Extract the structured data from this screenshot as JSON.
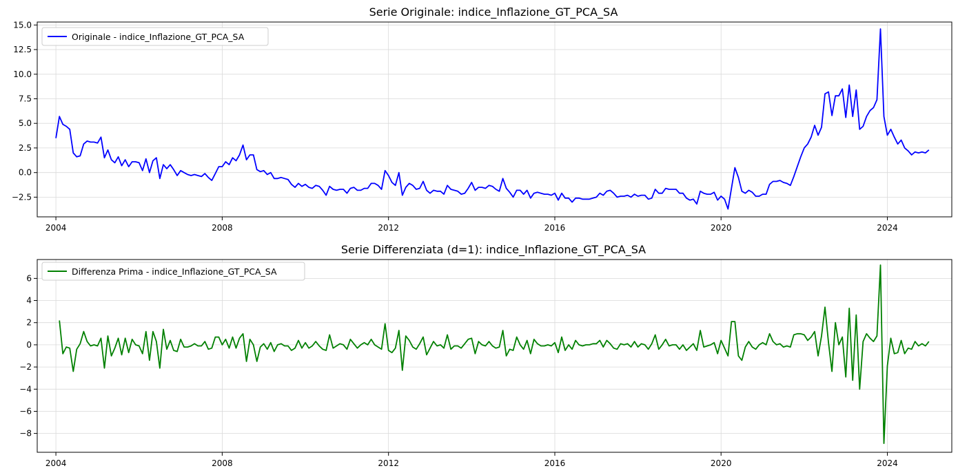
{
  "chart_data": [
    {
      "type": "line",
      "title": "Serie Originale: indice_Inflazione_GT_PCA_SA",
      "xlabel": "",
      "ylabel": "",
      "xlim": [
        2003.55,
        2025.55
      ],
      "ylim": [
        -4.5,
        15.3
      ],
      "x_ticks": [
        2004,
        2008,
        2012,
        2016,
        2020,
        2024
      ],
      "x_tick_labels": [
        "2004",
        "2008",
        "2012",
        "2016",
        "2020",
        "2024"
      ],
      "y_ticks": [
        -2.5,
        0,
        2.5,
        5,
        7.5,
        10,
        12.5,
        15
      ],
      "y_tick_labels": [
        "−2.5",
        "0.0",
        "2.5",
        "5.0",
        "7.5",
        "10.0",
        "12.5",
        "15.0"
      ],
      "grid": true,
      "legend_position": "top-left",
      "colors": {
        "series": "#0000ff",
        "grid": "#d9d9d9"
      },
      "series": [
        {
          "name": "Originale - indice_Inflazione_GT_PCA_SA",
          "x_start": "2004-01",
          "frequency": "monthly",
          "values": [
            3.5,
            5.7,
            4.9,
            4.7,
            4.4,
            2.0,
            1.6,
            1.7,
            2.9,
            3.2,
            3.1,
            3.1,
            3.0,
            3.6,
            1.5,
            2.3,
            1.3,
            1.0,
            1.6,
            0.7,
            1.3,
            0.6,
            1.1,
            1.1,
            1.0,
            0.2,
            1.4,
            0.0,
            1.2,
            1.5,
            -0.6,
            0.8,
            0.4,
            0.8,
            0.3,
            -0.3,
            0.2,
            0.0,
            -0.2,
            -0.3,
            -0.2,
            -0.3,
            -0.4,
            -0.1,
            -0.5,
            -0.8,
            -0.1,
            0.6,
            0.6,
            1.1,
            0.8,
            1.5,
            1.2,
            1.8,
            2.8,
            1.3,
            1.8,
            1.8,
            0.3,
            0.1,
            0.2,
            -0.2,
            0.0,
            -0.6,
            -0.6,
            -0.5,
            -0.6,
            -0.7,
            -1.2,
            -1.5,
            -1.1,
            -1.4,
            -1.2,
            -1.5,
            -1.6,
            -1.3,
            -1.4,
            -1.8,
            -2.3,
            -1.4,
            -1.7,
            -1.8,
            -1.7,
            -1.7,
            -2.1,
            -1.6,
            -1.5,
            -1.8,
            -1.8,
            -1.6,
            -1.6,
            -1.1,
            -1.1,
            -1.3,
            -1.7,
            0.2,
            -0.3,
            -1.0,
            -1.3,
            0.0,
            -2.3,
            -1.5,
            -1.1,
            -1.3,
            -1.7,
            -1.6,
            -0.9,
            -1.8,
            -2.1,
            -1.8,
            -1.9,
            -1.9,
            -2.2,
            -1.3,
            -1.7,
            -1.8,
            -1.9,
            -2.2,
            -2.1,
            -1.6,
            -1.0,
            -1.8,
            -1.5,
            -1.5,
            -1.6,
            -1.3,
            -1.4,
            -1.7,
            -1.9,
            -0.6,
            -1.6,
            -2.0,
            -2.5,
            -1.8,
            -1.8,
            -2.2,
            -1.8,
            -2.6,
            -2.1,
            -2.0,
            -2.1,
            -2.2,
            -2.2,
            -2.3,
            -2.1,
            -2.8,
            -2.1,
            -2.6,
            -2.6,
            -3.0,
            -2.6,
            -2.6,
            -2.7,
            -2.7,
            -2.7,
            -2.6,
            -2.5,
            -2.1,
            -2.3,
            -1.9,
            -1.8,
            -2.1,
            -2.5,
            -2.4,
            -2.4,
            -2.3,
            -2.5,
            -2.2,
            -2.4,
            -2.3,
            -2.3,
            -2.7,
            -2.6,
            -1.7,
            -2.1,
            -2.1,
            -1.6,
            -1.7,
            -1.7,
            -1.7,
            -2.1,
            -2.1,
            -2.6,
            -2.8,
            -2.7,
            -3.2,
            -1.9,
            -2.1,
            -2.2,
            -2.2,
            -2.0,
            -2.8,
            -2.4,
            -2.7,
            -3.7,
            -1.6,
            0.5,
            -0.5,
            -1.9,
            -2.1,
            -1.8,
            -2.0,
            -2.4,
            -2.4,
            -2.2,
            -2.2,
            -1.2,
            -0.9,
            -0.9,
            -0.8,
            -1.0,
            -1.1,
            -1.3,
            -0.4,
            0.6,
            1.6,
            2.5,
            2.9,
            3.6,
            4.8,
            3.8,
            4.6,
            8.0,
            8.2,
            5.8,
            7.8,
            7.8,
            8.5,
            5.6,
            8.9,
            5.7,
            8.4,
            4.4,
            4.7,
            5.7,
            6.3,
            6.6,
            7.4,
            14.6,
            5.7,
            3.8,
            4.4,
            3.6,
            2.9,
            3.3,
            2.5,
            2.2,
            1.8,
            2.1,
            2.0,
            2.1,
            2.0,
            2.3
          ]
        }
      ]
    },
    {
      "type": "line",
      "title": "Serie Differenziata (d=1): indice_Inflazione_GT_PCA_SA",
      "xlabel": "",
      "ylabel": "",
      "xlim": [
        2003.55,
        2025.55
      ],
      "ylim": [
        -9.7,
        7.7
      ],
      "x_ticks": [
        2004,
        2008,
        2012,
        2016,
        2020,
        2024
      ],
      "x_tick_labels": [
        "2004",
        "2008",
        "2012",
        "2016",
        "2020",
        "2024"
      ],
      "y_ticks": [
        -8,
        -6,
        -4,
        -2,
        0,
        2,
        4,
        6
      ],
      "y_tick_labels": [
        "−8",
        "−6",
        "−4",
        "−2",
        "0",
        "2",
        "4",
        "6"
      ],
      "grid": true,
      "legend_position": "top-left",
      "colors": {
        "series": "#008000",
        "grid": "#d9d9d9"
      },
      "series": [
        {
          "name": "Differenza Prima - indice_Inflazione_GT_PCA_SA",
          "x_start": "2004-02",
          "frequency": "monthly",
          "values": [
            2.2,
            -0.8,
            -0.2,
            -0.3,
            -2.4,
            -0.4,
            0.1,
            1.2,
            0.3,
            -0.1,
            0.0,
            -0.1,
            0.6,
            -2.1,
            0.8,
            -1.0,
            -0.3,
            0.6,
            -0.9,
            0.6,
            -0.7,
            0.5,
            0.0,
            -0.1,
            -0.8,
            1.2,
            -1.4,
            1.2,
            0.3,
            -2.1,
            1.4,
            -0.4,
            0.4,
            -0.5,
            -0.6,
            0.5,
            -0.2,
            -0.2,
            -0.1,
            0.1,
            -0.1,
            -0.1,
            0.3,
            -0.4,
            -0.3,
            0.7,
            0.7,
            0.0,
            0.5,
            -0.3,
            0.7,
            -0.3,
            0.6,
            1.0,
            -1.5,
            0.5,
            0.0,
            -1.5,
            -0.2,
            0.1,
            -0.4,
            0.2,
            -0.6,
            0.0,
            0.1,
            -0.1,
            -0.1,
            -0.5,
            -0.3,
            0.4,
            -0.3,
            0.2,
            -0.3,
            -0.1,
            0.3,
            -0.1,
            -0.4,
            -0.5,
            0.9,
            -0.3,
            -0.1,
            0.1,
            0.0,
            -0.4,
            0.5,
            0.1,
            -0.3,
            0.0,
            0.2,
            0.0,
            0.5,
            0.0,
            -0.2,
            -0.4,
            1.9,
            -0.5,
            -0.7,
            -0.3,
            1.3,
            -2.3,
            0.8,
            0.4,
            -0.2,
            -0.4,
            0.1,
            0.7,
            -0.9,
            -0.3,
            0.3,
            -0.1,
            0.0,
            -0.3,
            0.9,
            -0.4,
            -0.1,
            -0.1,
            -0.3,
            0.1,
            0.5,
            0.6,
            -0.8,
            0.3,
            0.0,
            -0.1,
            0.3,
            -0.1,
            -0.3,
            -0.2,
            1.3,
            -1.0,
            -0.4,
            -0.5,
            0.7,
            0.0,
            -0.4,
            0.4,
            -0.8,
            0.5,
            0.1,
            -0.1,
            -0.1,
            0.0,
            -0.1,
            0.2,
            -0.7,
            0.7,
            -0.5,
            0.0,
            -0.4,
            0.4,
            0.0,
            -0.1,
            0.0,
            0.0,
            0.1,
            0.1,
            0.4,
            -0.2,
            0.4,
            0.1,
            -0.3,
            -0.4,
            0.1,
            0.0,
            0.1,
            -0.2,
            0.3,
            -0.2,
            0.1,
            0.0,
            -0.4,
            0.1,
            0.9,
            -0.4,
            0.0,
            0.5,
            -0.1,
            0.0,
            0.0,
            -0.4,
            0.0,
            -0.5,
            -0.2,
            0.1,
            -0.5,
            1.3,
            -0.2,
            -0.1,
            0.0,
            0.2,
            -0.8,
            0.4,
            -0.3,
            -1.0,
            2.1,
            2.1,
            -1.0,
            -1.4,
            -0.2,
            0.3,
            -0.2,
            -0.4,
            0.0,
            0.2,
            0.0,
            1.0,
            0.3,
            0.0,
            0.1,
            -0.2,
            -0.1,
            -0.2,
            0.9,
            1.0,
            1.0,
            0.9,
            0.4,
            0.7,
            1.2,
            -1.0,
            0.8,
            3.4,
            0.2,
            -2.4,
            2.0,
            0.0,
            0.7,
            -2.9,
            3.3,
            -3.2,
            2.7,
            -4.0,
            0.3,
            1.0,
            0.6,
            0.3,
            0.8,
            7.2,
            -8.9,
            -1.9,
            0.6,
            -0.8,
            -0.7,
            0.4,
            -0.8,
            -0.3,
            -0.4,
            0.3,
            -0.1,
            0.1,
            -0.1,
            0.3
          ]
        }
      ]
    }
  ]
}
